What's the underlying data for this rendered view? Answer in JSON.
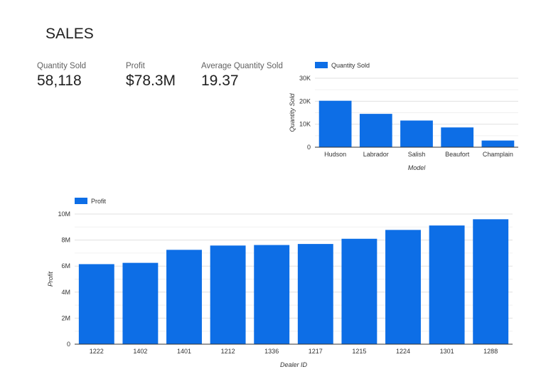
{
  "page": {
    "title": "SALES"
  },
  "kpis": [
    {
      "label": "Quantity Sold",
      "value": "58,118"
    },
    {
      "label": "Profit",
      "value": "$78.3M"
    },
    {
      "label": "Average Quantity Sold",
      "value": "19.37"
    }
  ],
  "colors": {
    "bar": "#0d6ee6",
    "grid": "#e0e0e0",
    "axis": "#333333"
  },
  "chart_data": [
    {
      "type": "bar",
      "categories": [
        "Hudson",
        "Labrador",
        "Salish",
        "Beaufort",
        "Champlain"
      ],
      "series": [
        {
          "name": "Quantity Sold",
          "values": [
            20200,
            14500,
            11600,
            8600,
            2900
          ]
        }
      ],
      "xlabel": "Model",
      "ylabel": "Quantity Sold",
      "ylim": [
        0,
        30000
      ],
      "yticks": [
        0,
        10000,
        20000,
        30000
      ],
      "ytick_labels": [
        "0",
        "10K",
        "20K",
        "30K"
      ],
      "grid": true,
      "legend_position": "top-left"
    },
    {
      "type": "bar",
      "categories": [
        "1222",
        "1402",
        "1401",
        "1212",
        "1336",
        "1217",
        "1215",
        "1224",
        "1301",
        "1288"
      ],
      "series": [
        {
          "name": "Profit",
          "values": [
            6150000,
            6250000,
            7250000,
            7580000,
            7620000,
            7700000,
            8100000,
            8780000,
            9120000,
            9600000
          ]
        }
      ],
      "xlabel": "Dealer ID",
      "ylabel": "Profit",
      "ylim": [
        0,
        10000000
      ],
      "yticks": [
        0,
        2000000,
        4000000,
        6000000,
        8000000,
        10000000
      ],
      "ytick_labels": [
        "0",
        "2M",
        "4M",
        "6M",
        "8M",
        "10M"
      ],
      "grid": true,
      "legend_position": "top-left"
    }
  ]
}
